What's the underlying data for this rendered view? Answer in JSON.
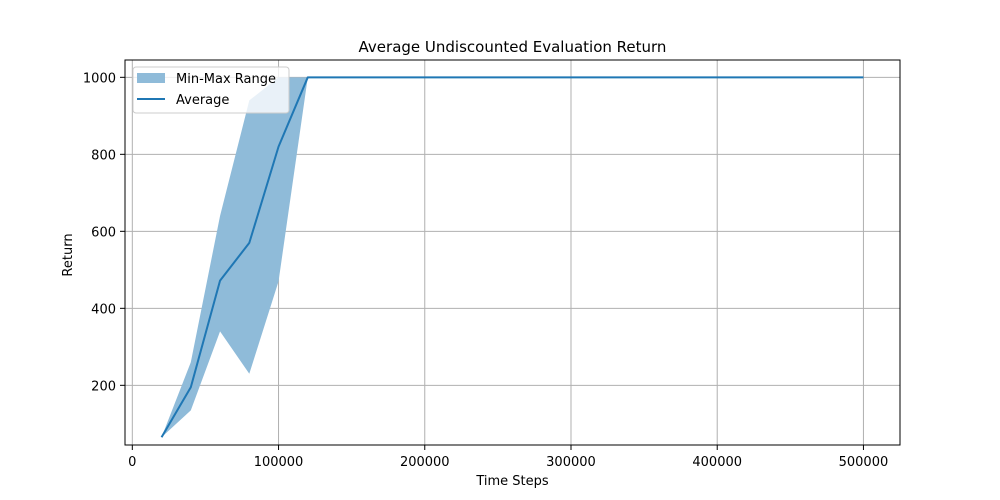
{
  "chart_data": {
    "type": "line",
    "title": "Average Undiscounted Evaluation Return",
    "xlabel": "Time Steps",
    "ylabel": "Return",
    "xlim": [
      -5000,
      525000
    ],
    "ylim": [
      45,
      1045
    ],
    "xticks": [
      0,
      100000,
      200000,
      300000,
      400000,
      500000
    ],
    "xtick_labels": [
      "0",
      "100000",
      "200000",
      "300000",
      "400000",
      "500000"
    ],
    "yticks": [
      200,
      400,
      600,
      800,
      1000
    ],
    "ytick_labels": [
      "200",
      "400",
      "600",
      "800",
      "1000"
    ],
    "grid": true,
    "legend_position": "top-left",
    "x": [
      20000,
      40000,
      60000,
      80000,
      100000,
      120000,
      140000,
      160000,
      180000,
      200000,
      220000,
      240000,
      260000,
      280000,
      300000,
      320000,
      340000,
      360000,
      380000,
      400000,
      420000,
      440000,
      460000,
      480000,
      500000
    ],
    "series": [
      {
        "name": "Min-Max Range",
        "kind": "band",
        "color": "#8fbbd9",
        "min": [
          65,
          135,
          340,
          230,
          470,
          1000,
          1000,
          1000,
          1000,
          1000,
          1000,
          1000,
          1000,
          1000,
          1000,
          1000,
          1000,
          1000,
          1000,
          1000,
          1000,
          1000,
          1000,
          1000,
          1000
        ],
        "max": [
          65,
          260,
          640,
          940,
          1000,
          1000,
          1000,
          1000,
          1000,
          1000,
          1000,
          1000,
          1000,
          1000,
          1000,
          1000,
          1000,
          1000,
          1000,
          1000,
          1000,
          1000,
          1000,
          1000,
          1000
        ]
      },
      {
        "name": "Average",
        "kind": "line",
        "color": "#1f77b4",
        "values": [
          65,
          195,
          472,
          570,
          820,
          1000,
          1000,
          1000,
          1000,
          1000,
          1000,
          1000,
          1000,
          1000,
          1000,
          1000,
          1000,
          1000,
          1000,
          1000,
          1000,
          1000,
          1000,
          1000,
          1000
        ]
      }
    ]
  }
}
